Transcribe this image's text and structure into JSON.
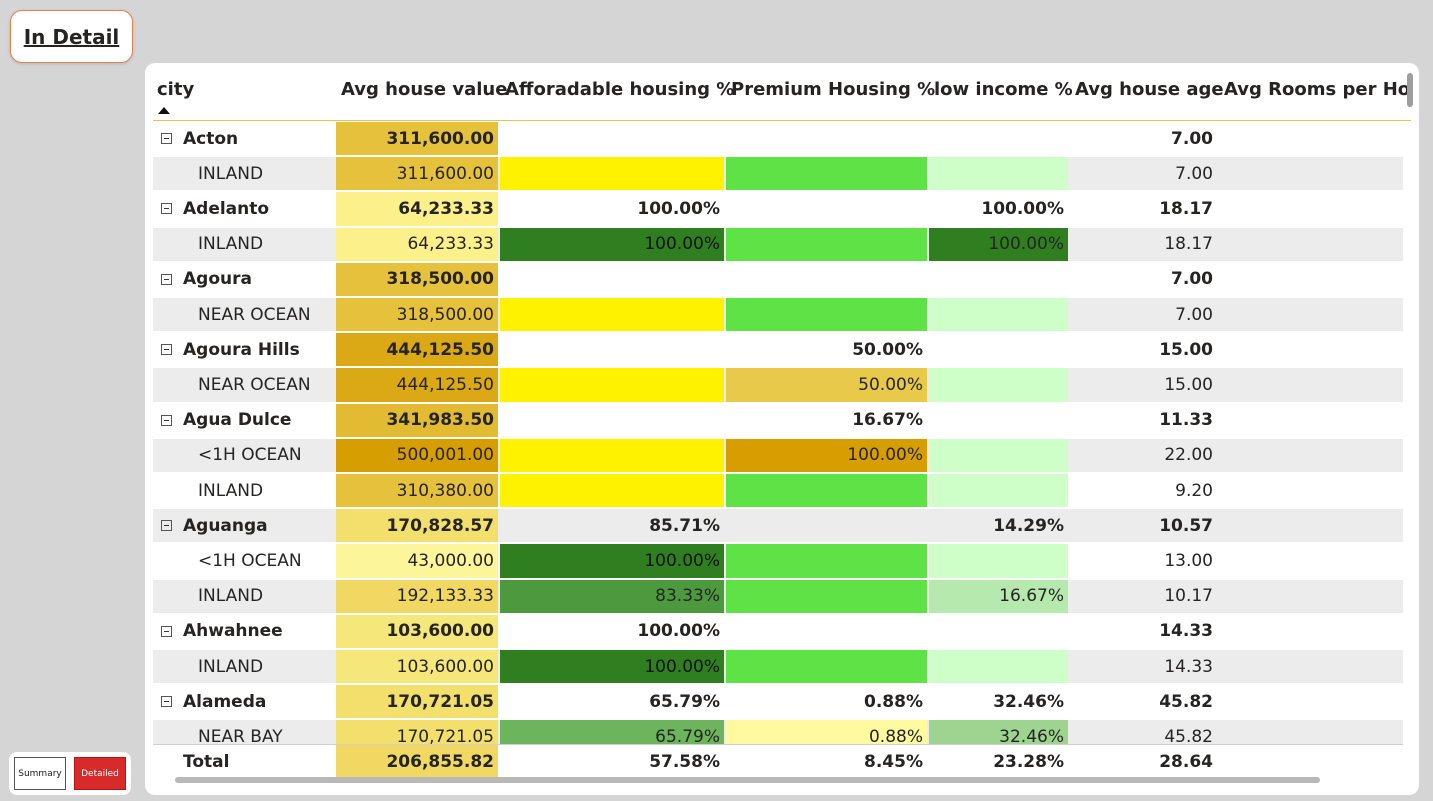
{
  "page_title": "In Detail",
  "toggle": {
    "summary_label": "Summary",
    "detailed_label": "Detailed"
  },
  "columns": [
    "city",
    "Avg house value",
    "Afforadable housing %",
    "Premium Housing %",
    "low income %",
    "Avg house age",
    "Avg Rooms per Hou"
  ],
  "sort": {
    "column": "city",
    "direction": "ascending"
  },
  "colors": {
    "header_underline": "#e0c84a",
    "active_toggle": "#d72a2a",
    "accent_border": "#e8804a"
  },
  "rows": [
    {
      "type": "group",
      "city": "Acton",
      "avg_value": "311,600.00",
      "affordable": "",
      "premium": "",
      "low_income": "",
      "age": "7.00",
      "rooms": "",
      "bg": "#ffffff",
      "c_value": "#e6c13c",
      "c_aff": "",
      "c_prem": "",
      "c_low": ""
    },
    {
      "type": "sub",
      "city": "INLAND",
      "avg_value": "311,600.00",
      "affordable": "",
      "premium": "",
      "low_income": "",
      "age": "7.00",
      "rooms": "",
      "bg": "#ececec",
      "c_value": "#e6c13c",
      "c_aff": "#fff200",
      "c_prem": "#5fe246",
      "c_low": "#cfffc8"
    },
    {
      "type": "group",
      "city": "Adelanto",
      "avg_value": "64,233.33",
      "affordable": "100.00%",
      "premium": "",
      "low_income": "100.00%",
      "age": "18.17",
      "rooms": "",
      "bg": "#ffffff",
      "c_value": "#fbf089",
      "c_aff": "",
      "c_prem": "",
      "c_low": ""
    },
    {
      "type": "sub",
      "city": "INLAND",
      "avg_value": "64,233.33",
      "affordable": "100.00%",
      "premium": "",
      "low_income": "100.00%",
      "age": "18.17",
      "rooms": "",
      "bg": "#ececec",
      "c_value": "#fbf089",
      "c_aff": "#2f7f21",
      "c_prem": "#5fe246",
      "c_low": "#2f7f21"
    },
    {
      "type": "group",
      "city": "Agoura",
      "avg_value": "318,500.00",
      "affordable": "",
      "premium": "",
      "low_income": "",
      "age": "7.00",
      "rooms": "",
      "bg": "#ffffff",
      "c_value": "#e6c13c",
      "c_aff": "",
      "c_prem": "",
      "c_low": ""
    },
    {
      "type": "sub",
      "city": "NEAR OCEAN",
      "avg_value": "318,500.00",
      "affordable": "",
      "premium": "",
      "low_income": "",
      "age": "7.00",
      "rooms": "",
      "bg": "#ececec",
      "c_value": "#e6c13c",
      "c_aff": "#fff200",
      "c_prem": "#5fe246",
      "c_low": "#cfffc8"
    },
    {
      "type": "group",
      "city": "Agoura Hills",
      "avg_value": "444,125.50",
      "affordable": "",
      "premium": "50.00%",
      "low_income": "",
      "age": "15.00",
      "rooms": "",
      "bg": "#ffffff",
      "c_value": "#dba816",
      "c_aff": "",
      "c_prem": "",
      "c_low": ""
    },
    {
      "type": "sub",
      "city": "NEAR OCEAN",
      "avg_value": "444,125.50",
      "affordable": "",
      "premium": "50.00%",
      "low_income": "",
      "age": "15.00",
      "rooms": "",
      "bg": "#ececec",
      "c_value": "#dba816",
      "c_aff": "#fff200",
      "c_prem": "#e8c94a",
      "c_low": "#cfffc8"
    },
    {
      "type": "group",
      "city": "Agua Dulce",
      "avg_value": "341,983.50",
      "affordable": "",
      "premium": "16.67%",
      "low_income": "",
      "age": "11.33",
      "rooms": "",
      "bg": "#ffffff",
      "c_value": "#e3bb32",
      "c_aff": "",
      "c_prem": "",
      "c_low": ""
    },
    {
      "type": "sub",
      "city": "<1H OCEAN",
      "avg_value": "500,001.00",
      "affordable": "",
      "premium": "100.00%",
      "low_income": "",
      "age": "22.00",
      "rooms": "",
      "bg": "#ececec",
      "c_value": "#d69e00",
      "c_aff": "#fff200",
      "c_prem": "#d69e00",
      "c_low": "#cfffc8"
    },
    {
      "type": "sub",
      "city": "INLAND",
      "avg_value": "310,380.00",
      "affordable": "",
      "premium": "",
      "low_income": "",
      "age": "9.20",
      "rooms": "",
      "bg": "#ffffff",
      "c_value": "#e6c13c",
      "c_aff": "#fff200",
      "c_prem": "#5fe246",
      "c_low": "#cfffc8"
    },
    {
      "type": "group",
      "city": "Aguanga",
      "avg_value": "170,828.57",
      "affordable": "85.71%",
      "premium": "",
      "low_income": "14.29%",
      "age": "10.57",
      "rooms": "",
      "bg": "#ececec",
      "c_value": "#f3df6c",
      "c_aff": "",
      "c_prem": "",
      "c_low": ""
    },
    {
      "type": "sub",
      "city": "<1H OCEAN",
      "avg_value": "43,000.00",
      "affordable": "100.00%",
      "premium": "",
      "low_income": "",
      "age": "13.00",
      "rooms": "",
      "bg": "#ffffff",
      "c_value": "#fdf59a",
      "c_aff": "#2f7f21",
      "c_prem": "#5fe246",
      "c_low": "#cfffc8"
    },
    {
      "type": "sub",
      "city": "INLAND",
      "avg_value": "192,133.33",
      "affordable": "83.33%",
      "premium": "",
      "low_income": "16.67%",
      "age": "10.17",
      "rooms": "",
      "bg": "#ececec",
      "c_value": "#f0d862",
      "c_aff": "#4d9a3e",
      "c_prem": "#5fe246",
      "c_low": "#b6e9ad"
    },
    {
      "type": "group",
      "city": "Ahwahnee",
      "avg_value": "103,600.00",
      "affordable": "100.00%",
      "premium": "",
      "low_income": "",
      "age": "14.33",
      "rooms": "",
      "bg": "#ffffff",
      "c_value": "#f6e77b",
      "c_aff": "",
      "c_prem": "",
      "c_low": ""
    },
    {
      "type": "sub",
      "city": "INLAND",
      "avg_value": "103,600.00",
      "affordable": "100.00%",
      "premium": "",
      "low_income": "",
      "age": "14.33",
      "rooms": "",
      "bg": "#ececec",
      "c_value": "#f6e77b",
      "c_aff": "#2f7f21",
      "c_prem": "#5fe246",
      "c_low": "#cfffc8"
    },
    {
      "type": "group",
      "city": "Alameda",
      "avg_value": "170,721.05",
      "affordable": "65.79%",
      "premium": "0.88%",
      "low_income": "32.46%",
      "age": "45.82",
      "rooms": "",
      "bg": "#ffffff",
      "c_value": "#f3df6c",
      "c_aff": "",
      "c_prem": "",
      "c_low": ""
    },
    {
      "type": "sub",
      "city": "NEAR BAY",
      "avg_value": "170,721.05",
      "affordable": "65.79%",
      "premium": "0.88%",
      "low_income": "32.46%",
      "age": "45.82",
      "rooms": "",
      "bg": "#ececec",
      "c_value": "#f3df6c",
      "c_aff": "#6cb55c",
      "c_prem": "#fff9a0",
      "c_low": "#9dd490"
    }
  ],
  "total": {
    "city": "Total",
    "avg_value": "206,855.82",
    "affordable": "57.58%",
    "premium": "8.45%",
    "low_income": "23.28%",
    "age": "28.64",
    "rooms": "",
    "c_value": "#f0d862"
  }
}
